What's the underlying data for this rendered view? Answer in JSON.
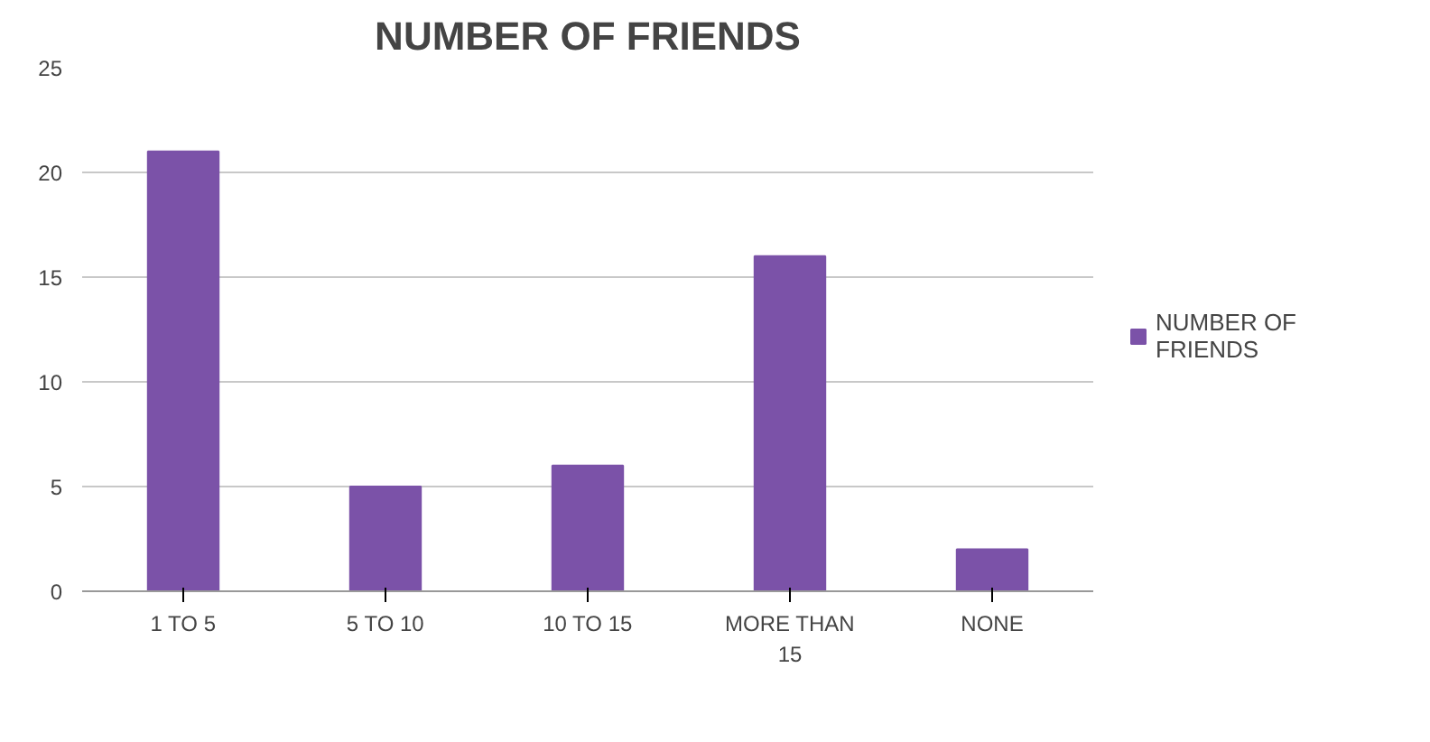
{
  "chart_data": {
    "type": "bar",
    "title": "NUMBER OF FRIENDS",
    "categories": [
      "1 TO 5",
      "5 TO 10",
      "10 TO 15",
      "MORE THAN 15",
      "NONE"
    ],
    "series": [
      {
        "name": "NUMBER OF FRIENDS",
        "color": "#7b52a8",
        "values": [
          21,
          5,
          6,
          16,
          2
        ]
      }
    ],
    "ylim": [
      0,
      25
    ],
    "yticks": [
      0,
      5,
      10,
      15,
      20,
      25
    ],
    "grid": "y",
    "legend": "right"
  }
}
